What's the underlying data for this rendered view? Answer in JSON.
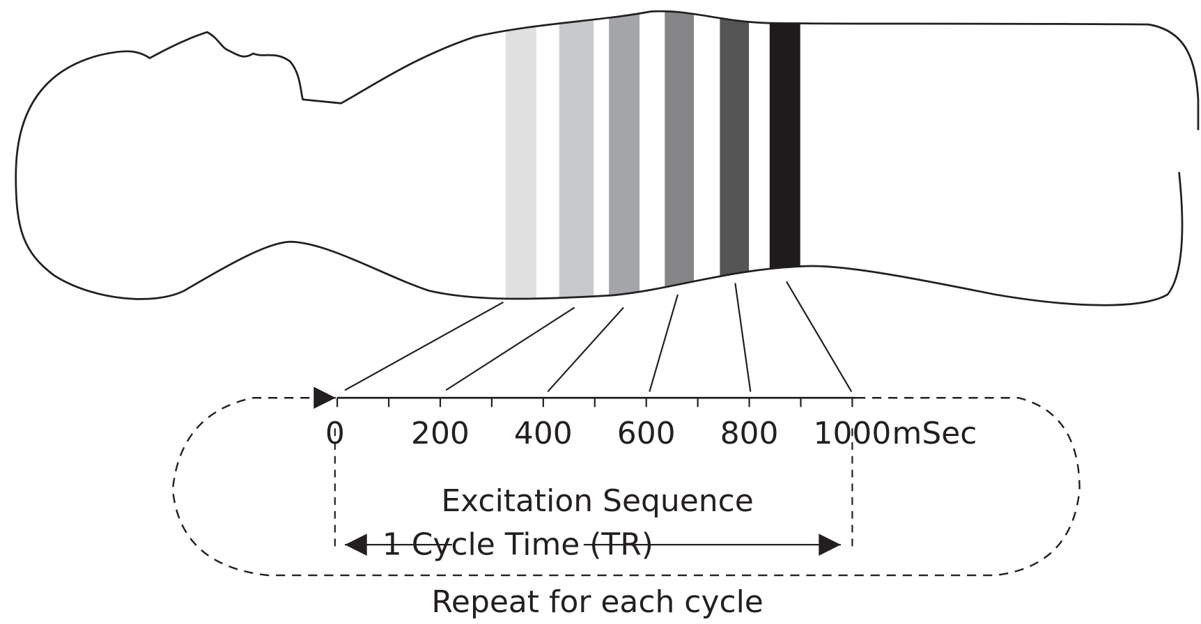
{
  "axis": {
    "tick_labels": [
      "0",
      "200",
      "400",
      "600",
      "800",
      "1000"
    ],
    "unit": "mSec"
  },
  "labels": {
    "sequence": "Excitation Sequence",
    "cycle_time": "1 Cycle Time (TR)",
    "repeat": "Repeat for each cycle"
  }
}
